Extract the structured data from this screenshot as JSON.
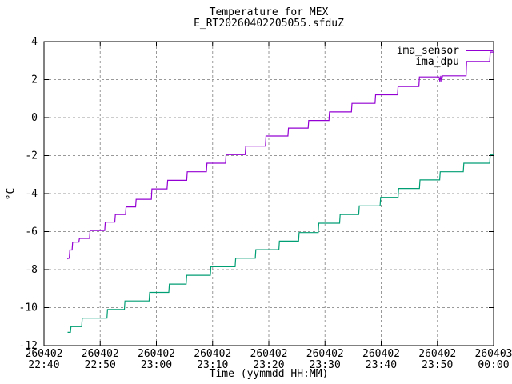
{
  "page": {
    "title": "Temperature for MEX",
    "subtitle": "E_RT20260402205055.sfduZ"
  },
  "chart_data": {
    "type": "line",
    "title": "Temperature for MEX",
    "subtitle": "E_RT20260402205055.sfduZ",
    "xlabel": "Time (yymmdd HH:MM)",
    "ylabel": "°C",
    "ylim": [
      -12,
      4
    ],
    "y_ticks": [
      4,
      2,
      0,
      -2,
      -4,
      -6,
      -8,
      -10,
      -12
    ],
    "x_minutes_range": [
      0,
      80
    ],
    "x_ticks": [
      {
        "minutes": 0,
        "date": "260402",
        "time": "22:40"
      },
      {
        "minutes": 10,
        "date": "260402",
        "time": "22:50"
      },
      {
        "minutes": 20,
        "date": "260402",
        "time": "23:00"
      },
      {
        "minutes": 30,
        "date": "260402",
        "time": "23:10"
      },
      {
        "minutes": 40,
        "date": "260402",
        "time": "23:20"
      },
      {
        "minutes": 50,
        "date": "260402",
        "time": "23:30"
      },
      {
        "minutes": 60,
        "date": "260402",
        "time": "23:40"
      },
      {
        "minutes": 70,
        "date": "260402",
        "time": "23:50"
      },
      {
        "minutes": 80,
        "date": "260403",
        "time": "00:00"
      }
    ],
    "grid": true,
    "legend_position": "top-right-inside",
    "colors": {
      "background": "#ffffff",
      "border": "#000000",
      "grid": "#999999"
    },
    "series": [
      {
        "name": "ima_sensor",
        "color": "#9400d3",
        "points": [
          [
            4.2,
            -7.45
          ],
          [
            4.3,
            -7.4
          ],
          [
            4.5,
            -7.4
          ],
          [
            4.6,
            -6.97
          ],
          [
            5.0,
            -6.97
          ],
          [
            5.1,
            -6.55
          ],
          [
            6.2,
            -6.55
          ],
          [
            6.3,
            -6.36
          ],
          [
            8.1,
            -6.36
          ],
          [
            8.2,
            -5.94
          ],
          [
            10.8,
            -5.94
          ],
          [
            10.9,
            -5.5
          ],
          [
            12.6,
            -5.5
          ],
          [
            12.7,
            -5.1
          ],
          [
            14.5,
            -5.1
          ],
          [
            14.6,
            -4.7
          ],
          [
            16.3,
            -4.7
          ],
          [
            16.4,
            -4.3
          ],
          [
            19.1,
            -4.3
          ],
          [
            19.2,
            -3.75
          ],
          [
            21.9,
            -3.75
          ],
          [
            22.0,
            -3.3
          ],
          [
            25.4,
            -3.3
          ],
          [
            25.5,
            -2.85
          ],
          [
            28.9,
            -2.85
          ],
          [
            29.0,
            -2.4
          ],
          [
            32.3,
            -2.4
          ],
          [
            32.4,
            -1.95
          ],
          [
            35.8,
            -1.95
          ],
          [
            35.9,
            -1.5
          ],
          [
            39.4,
            -1.5
          ],
          [
            39.5,
            -0.97
          ],
          [
            43.4,
            -0.97
          ],
          [
            43.5,
            -0.55
          ],
          [
            47.0,
            -0.55
          ],
          [
            47.1,
            -0.15
          ],
          [
            50.7,
            -0.15
          ],
          [
            50.8,
            0.3
          ],
          [
            54.7,
            0.3
          ],
          [
            54.8,
            0.75
          ],
          [
            58.9,
            0.75
          ],
          [
            59.0,
            1.2
          ],
          [
            62.9,
            1.2
          ],
          [
            63.0,
            1.64
          ],
          [
            66.7,
            1.64
          ],
          [
            66.8,
            2.14
          ],
          [
            70.3,
            2.14
          ],
          [
            70.45,
            1.9
          ],
          [
            70.6,
            2.2
          ],
          [
            70.75,
            1.9
          ],
          [
            70.9,
            2.2
          ],
          [
            75.1,
            2.2
          ],
          [
            75.2,
            2.95
          ],
          [
            79.3,
            2.95
          ],
          [
            79.4,
            3.45
          ],
          [
            80.0,
            3.45
          ]
        ]
      },
      {
        "name": "ima_dpu",
        "color": "#009e73",
        "points": [
          [
            4.2,
            -11.3
          ],
          [
            4.7,
            -11.3
          ],
          [
            4.8,
            -11.0
          ],
          [
            6.7,
            -11.0
          ],
          [
            6.8,
            -10.55
          ],
          [
            11.2,
            -10.55
          ],
          [
            11.3,
            -10.1
          ],
          [
            14.3,
            -10.1
          ],
          [
            14.4,
            -9.65
          ],
          [
            18.7,
            -9.65
          ],
          [
            18.8,
            -9.2
          ],
          [
            22.2,
            -9.2
          ],
          [
            22.3,
            -8.76
          ],
          [
            25.3,
            -8.76
          ],
          [
            25.4,
            -8.3
          ],
          [
            29.6,
            -8.3
          ],
          [
            29.7,
            -7.85
          ],
          [
            34.0,
            -7.85
          ],
          [
            34.1,
            -7.4
          ],
          [
            37.6,
            -7.4
          ],
          [
            37.7,
            -6.95
          ],
          [
            41.8,
            -6.95
          ],
          [
            41.9,
            -6.5
          ],
          [
            45.3,
            -6.5
          ],
          [
            45.4,
            -6.05
          ],
          [
            48.8,
            -6.05
          ],
          [
            48.9,
            -5.56
          ],
          [
            52.6,
            -5.56
          ],
          [
            52.7,
            -5.1
          ],
          [
            56.0,
            -5.1
          ],
          [
            56.1,
            -4.65
          ],
          [
            59.8,
            -4.65
          ],
          [
            59.9,
            -4.2
          ],
          [
            63.0,
            -4.2
          ],
          [
            63.1,
            -3.73
          ],
          [
            66.8,
            -3.73
          ],
          [
            66.9,
            -3.28
          ],
          [
            70.4,
            -3.28
          ],
          [
            70.5,
            -2.85
          ],
          [
            74.6,
            -2.85
          ],
          [
            74.7,
            -2.4
          ],
          [
            79.3,
            -2.4
          ],
          [
            79.4,
            -1.95
          ],
          [
            80.0,
            -1.95
          ]
        ]
      }
    ]
  }
}
